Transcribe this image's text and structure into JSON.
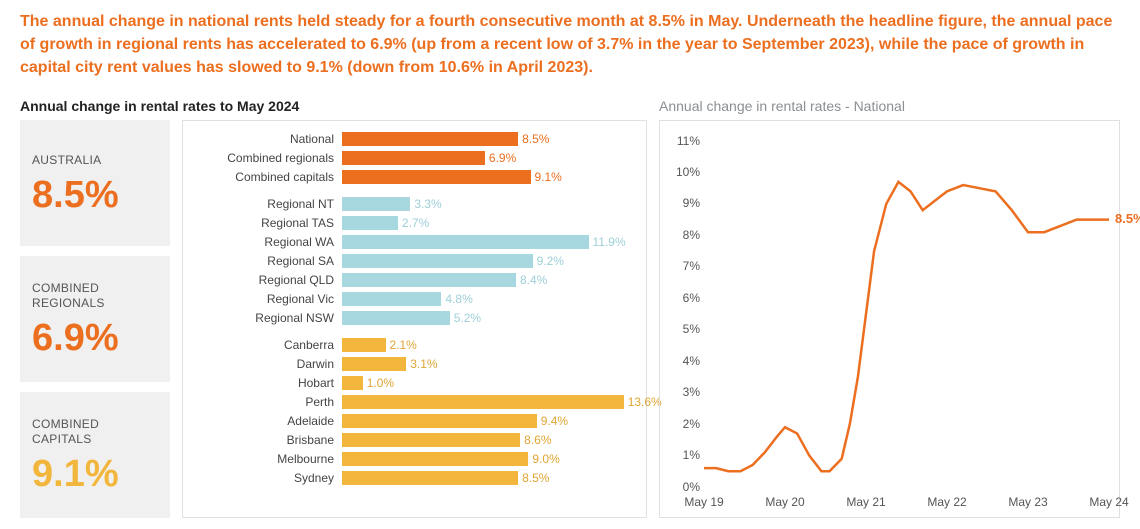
{
  "headline": "The annual change in national rents held steady for a fourth consecutive month at 8.5% in May. Underneath the headline figure, the annual pace of growth in regional rents has accelerated to 6.9% (up from a recent low of 3.7% in the year to September 2023), while the pace of growth in capital city rent values has slowed to 9.1% (down from 10.6% in April 2023).",
  "bar_chart": {
    "title": "Annual change in rental rates to May 2024",
    "x_max": 14,
    "label_fontsize": 12,
    "groups": [
      {
        "color": "#ec6e1f",
        "rows": [
          {
            "label": "National",
            "value": 8.5,
            "value_label": "8.5%"
          },
          {
            "label": "Combined regionals",
            "value": 6.9,
            "value_label": "6.9%"
          },
          {
            "label": "Combined capitals",
            "value": 9.1,
            "value_label": "9.1%"
          }
        ]
      },
      {
        "color": "#a7d8e0",
        "text_color": "#9ecfd8",
        "rows": [
          {
            "label": "Regional NT",
            "value": 3.3,
            "value_label": "3.3%"
          },
          {
            "label": "Regional TAS",
            "value": 2.7,
            "value_label": "2.7%"
          },
          {
            "label": "Regional WA",
            "value": 11.9,
            "value_label": "11.9%"
          },
          {
            "label": "Regional SA",
            "value": 9.2,
            "value_label": "9.2%"
          },
          {
            "label": "Regional QLD",
            "value": 8.4,
            "value_label": "8.4%"
          },
          {
            "label": "Regional Vic",
            "value": 4.8,
            "value_label": "4.8%"
          },
          {
            "label": "Regional NSW",
            "value": 5.2,
            "value_label": "5.2%"
          }
        ]
      },
      {
        "color": "#f2b63c",
        "text_color": "#e0a534",
        "rows": [
          {
            "label": "Canberra",
            "value": 2.1,
            "value_label": "2.1%"
          },
          {
            "label": "Darwin",
            "value": 3.1,
            "value_label": "3.1%"
          },
          {
            "label": "Hobart",
            "value": 1.0,
            "value_label": "1.0%"
          },
          {
            "label": "Perth",
            "value": 13.6,
            "value_label": "13.6%"
          },
          {
            "label": "Adelaide",
            "value": 9.4,
            "value_label": "9.4%"
          },
          {
            "label": "Brisbane",
            "value": 8.6,
            "value_label": "8.6%"
          },
          {
            "label": "Melbourne",
            "value": 9.0,
            "value_label": "9.0%"
          },
          {
            "label": "Sydney",
            "value": 8.5,
            "value_label": "8.5%"
          }
        ]
      }
    ]
  },
  "tiles": [
    {
      "label": "AUSTRALIA",
      "value": "8.5%",
      "color": "#ec6e1f"
    },
    {
      "label": "COMBINED REGIONALS",
      "value": "6.9%",
      "color": "#ec6e1f"
    },
    {
      "label": "COMBINED CAPITALS",
      "value": "9.1%",
      "color": "#f2b63c"
    }
  ],
  "line_chart": {
    "title": "Annual change in rental rates - National",
    "y_min": 0,
    "y_max": 11,
    "y_ticks": [
      0,
      1,
      2,
      3,
      4,
      5,
      6,
      7,
      8,
      9,
      10,
      11
    ],
    "y_tick_labels": [
      "0%",
      "1%",
      "2%",
      "3%",
      "4%",
      "5%",
      "6%",
      "7%",
      "8%",
      "9%",
      "10%",
      "11%"
    ],
    "x_ticks": [
      0,
      0.2,
      0.4,
      0.6,
      0.8,
      1.0
    ],
    "x_tick_labels": [
      "May 19",
      "May 20",
      "May 21",
      "May 22",
      "May 23",
      "May 24"
    ],
    "line_color": "#ec6e1f",
    "line_width": 2.5,
    "end_label": "8.5%",
    "points": [
      [
        0.0,
        0.6
      ],
      [
        0.03,
        0.6
      ],
      [
        0.06,
        0.5
      ],
      [
        0.09,
        0.5
      ],
      [
        0.12,
        0.7
      ],
      [
        0.15,
        1.1
      ],
      [
        0.18,
        1.6
      ],
      [
        0.2,
        1.9
      ],
      [
        0.23,
        1.7
      ],
      [
        0.26,
        1.0
      ],
      [
        0.29,
        0.5
      ],
      [
        0.31,
        0.5
      ],
      [
        0.34,
        0.9
      ],
      [
        0.36,
        2.0
      ],
      [
        0.38,
        3.5
      ],
      [
        0.4,
        5.5
      ],
      [
        0.42,
        7.5
      ],
      [
        0.45,
        9.0
      ],
      [
        0.48,
        9.7
      ],
      [
        0.51,
        9.4
      ],
      [
        0.54,
        8.8
      ],
      [
        0.57,
        9.1
      ],
      [
        0.6,
        9.4
      ],
      [
        0.64,
        9.6
      ],
      [
        0.68,
        9.5
      ],
      [
        0.72,
        9.4
      ],
      [
        0.76,
        8.8
      ],
      [
        0.8,
        8.1
      ],
      [
        0.84,
        8.1
      ],
      [
        0.88,
        8.3
      ],
      [
        0.92,
        8.5
      ],
      [
        0.96,
        8.5
      ],
      [
        1.0,
        8.5
      ]
    ]
  }
}
